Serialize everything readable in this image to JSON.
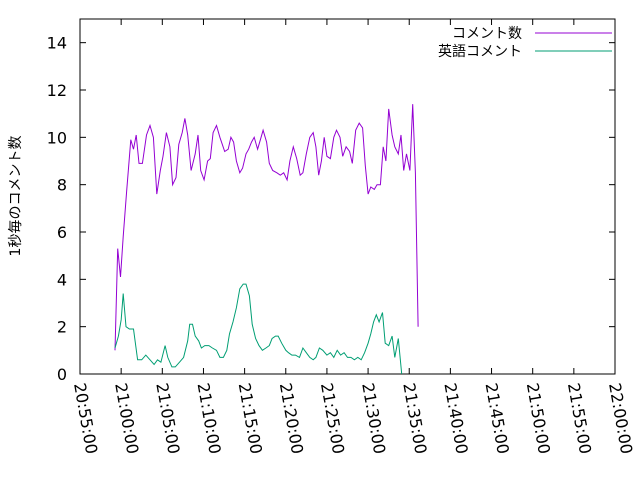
{
  "chart_data": {
    "type": "line",
    "title": "",
    "xlabel": "",
    "ylabel": "1秒毎のコメント数",
    "xlim": [
      "20:55:00",
      "22:00:00"
    ],
    "ylim": [
      0,
      15
    ],
    "xticks": [
      "20:55:00",
      "21:00:00",
      "21:05:00",
      "21:10:00",
      "21:15:00",
      "21:20:00",
      "21:25:00",
      "21:30:00",
      "21:35:00",
      "21:40:00",
      "21:45:00",
      "21:50:00",
      "21:55:00",
      "22:00:00"
    ],
    "yticks": [
      0,
      2,
      4,
      6,
      8,
      10,
      12,
      14
    ],
    "grid": false,
    "legend_position": "top-right",
    "series": [
      {
        "name": "コメント数",
        "color": "#9400d3",
        "points": [
          [
            "20:59:15",
            1.0
          ],
          [
            "20:59:35",
            5.3
          ],
          [
            "20:59:55",
            4.1
          ],
          [
            "21:00:15",
            5.8
          ],
          [
            "21:00:40",
            7.7
          ],
          [
            "21:01:10",
            9.9
          ],
          [
            "21:01:30",
            9.5
          ],
          [
            "21:01:50",
            10.1
          ],
          [
            "21:02:10",
            8.9
          ],
          [
            "21:02:35",
            8.9
          ],
          [
            "21:03:05",
            10.1
          ],
          [
            "21:03:30",
            10.5
          ],
          [
            "21:03:55",
            10.0
          ],
          [
            "21:04:20",
            7.6
          ],
          [
            "21:04:45",
            8.6
          ],
          [
            "21:05:05",
            9.2
          ],
          [
            "21:05:30",
            10.2
          ],
          [
            "21:05:55",
            9.6
          ],
          [
            "21:06:15",
            8.0
          ],
          [
            "21:06:40",
            8.3
          ],
          [
            "21:07:00",
            9.7
          ],
          [
            "21:07:25",
            10.2
          ],
          [
            "21:07:45",
            10.8
          ],
          [
            "21:08:05",
            10.1
          ],
          [
            "21:08:30",
            8.6
          ],
          [
            "21:09:00",
            9.3
          ],
          [
            "21:09:20",
            10.1
          ],
          [
            "21:09:40",
            8.6
          ],
          [
            "21:10:05",
            8.2
          ],
          [
            "21:10:30",
            9.0
          ],
          [
            "21:10:50",
            9.1
          ],
          [
            "21:11:10",
            10.2
          ],
          [
            "21:11:35",
            10.5
          ],
          [
            "21:12:00",
            10.0
          ],
          [
            "21:12:35",
            9.4
          ],
          [
            "21:13:00",
            9.5
          ],
          [
            "21:13:20",
            10.0
          ],
          [
            "21:13:40",
            9.8
          ],
          [
            "21:14:00",
            9.0
          ],
          [
            "21:14:25",
            8.5
          ],
          [
            "21:14:45",
            8.7
          ],
          [
            "21:15:10",
            9.3
          ],
          [
            "21:15:30",
            9.5
          ],
          [
            "21:15:50",
            9.8
          ],
          [
            "21:16:10",
            10.0
          ],
          [
            "21:16:35",
            9.5
          ],
          [
            "21:16:55",
            9.9
          ],
          [
            "21:17:15",
            10.3
          ],
          [
            "21:17:40",
            9.8
          ],
          [
            "21:18:00",
            8.9
          ],
          [
            "21:18:25",
            8.6
          ],
          [
            "21:18:55",
            8.5
          ],
          [
            "21:19:20",
            8.4
          ],
          [
            "21:19:45",
            8.5
          ],
          [
            "21:20:10",
            8.2
          ],
          [
            "21:20:30",
            9.0
          ],
          [
            "21:20:55",
            9.6
          ],
          [
            "21:21:20",
            9.1
          ],
          [
            "21:21:45",
            8.4
          ],
          [
            "21:22:05",
            8.5
          ],
          [
            "21:22:30",
            9.3
          ],
          [
            "21:22:55",
            10.0
          ],
          [
            "21:23:20",
            10.2
          ],
          [
            "21:23:40",
            9.6
          ],
          [
            "21:24:00",
            8.4
          ],
          [
            "21:24:20",
            9.0
          ],
          [
            "21:24:40",
            10.0
          ],
          [
            "21:25:00",
            9.2
          ],
          [
            "21:25:25",
            9.1
          ],
          [
            "21:25:50",
            10.0
          ],
          [
            "21:26:10",
            10.3
          ],
          [
            "21:26:35",
            10.0
          ],
          [
            "21:26:55",
            9.2
          ],
          [
            "21:27:20",
            9.6
          ],
          [
            "21:27:45",
            9.4
          ],
          [
            "21:28:05",
            8.9
          ],
          [
            "21:28:30",
            10.3
          ],
          [
            "21:28:55",
            10.6
          ],
          [
            "21:29:20",
            10.4
          ],
          [
            "21:29:40",
            8.8
          ],
          [
            "21:30:00",
            7.6
          ],
          [
            "21:30:20",
            7.9
          ],
          [
            "21:30:45",
            7.8
          ],
          [
            "21:31:05",
            8.0
          ],
          [
            "21:31:30",
            8.0
          ],
          [
            "21:31:50",
            9.6
          ],
          [
            "21:32:10",
            9.0
          ],
          [
            "21:32:30",
            11.2
          ],
          [
            "21:32:55",
            10.1
          ],
          [
            "21:33:15",
            9.6
          ],
          [
            "21:33:40",
            9.3
          ],
          [
            "21:34:00",
            10.1
          ],
          [
            "21:34:20",
            8.6
          ],
          [
            "21:34:40",
            9.3
          ],
          [
            "21:35:05",
            8.6
          ],
          [
            "21:35:25",
            11.4
          ],
          [
            "21:35:45",
            8.5
          ],
          [
            "21:36:05",
            2.0
          ]
        ]
      },
      {
        "name": "英語コメント",
        "color": "#009e73",
        "points": [
          [
            "20:59:15",
            1.1
          ],
          [
            "20:59:40",
            1.6
          ],
          [
            "21:00:00",
            2.3
          ],
          [
            "21:00:15",
            3.4
          ],
          [
            "21:00:35",
            2.0
          ],
          [
            "21:01:00",
            1.9
          ],
          [
            "21:01:30",
            1.9
          ],
          [
            "21:02:00",
            0.6
          ],
          [
            "21:02:30",
            0.6
          ],
          [
            "21:03:00",
            0.8
          ],
          [
            "21:03:30",
            0.6
          ],
          [
            "21:04:00",
            0.4
          ],
          [
            "21:04:25",
            0.6
          ],
          [
            "21:04:50",
            0.5
          ],
          [
            "21:05:20",
            1.2
          ],
          [
            "21:05:40",
            0.7
          ],
          [
            "21:06:10",
            0.3
          ],
          [
            "21:06:35",
            0.3
          ],
          [
            "21:07:05",
            0.5
          ],
          [
            "21:07:35",
            0.7
          ],
          [
            "21:08:05",
            1.4
          ],
          [
            "21:08:20",
            2.1
          ],
          [
            "21:08:40",
            2.1
          ],
          [
            "21:09:00",
            1.6
          ],
          [
            "21:09:25",
            1.4
          ],
          [
            "21:09:45",
            1.1
          ],
          [
            "21:10:10",
            1.2
          ],
          [
            "21:10:40",
            1.2
          ],
          [
            "21:11:05",
            1.1
          ],
          [
            "21:11:35",
            1.0
          ],
          [
            "21:12:00",
            0.7
          ],
          [
            "21:12:25",
            0.7
          ],
          [
            "21:12:50",
            1.0
          ],
          [
            "21:13:10",
            1.7
          ],
          [
            "21:13:35",
            2.2
          ],
          [
            "21:14:00",
            2.8
          ],
          [
            "21:14:25",
            3.6
          ],
          [
            "21:14:50",
            3.8
          ],
          [
            "21:15:10",
            3.8
          ],
          [
            "21:15:35",
            3.3
          ],
          [
            "21:15:55",
            2.1
          ],
          [
            "21:16:20",
            1.5
          ],
          [
            "21:16:45",
            1.2
          ],
          [
            "21:17:10",
            1.0
          ],
          [
            "21:17:35",
            1.1
          ],
          [
            "21:18:00",
            1.2
          ],
          [
            "21:18:20",
            1.5
          ],
          [
            "21:18:45",
            1.6
          ],
          [
            "21:19:05",
            1.6
          ],
          [
            "21:19:30",
            1.3
          ],
          [
            "21:20:00",
            1.0
          ],
          [
            "21:20:20",
            0.9
          ],
          [
            "21:20:45",
            0.8
          ],
          [
            "21:21:10",
            0.8
          ],
          [
            "21:21:40",
            0.7
          ],
          [
            "21:22:05",
            1.1
          ],
          [
            "21:22:30",
            0.9
          ],
          [
            "21:22:55",
            0.7
          ],
          [
            "21:23:20",
            0.6
          ],
          [
            "21:23:40",
            0.7
          ],
          [
            "21:24:05",
            1.1
          ],
          [
            "21:24:30",
            1.0
          ],
          [
            "21:25:00",
            0.8
          ],
          [
            "21:25:25",
            0.9
          ],
          [
            "21:25:50",
            0.7
          ],
          [
            "21:26:15",
            1.0
          ],
          [
            "21:26:40",
            0.8
          ],
          [
            "21:27:05",
            0.9
          ],
          [
            "21:27:30",
            0.7
          ],
          [
            "21:27:55",
            0.7
          ],
          [
            "21:28:20",
            0.6
          ],
          [
            "21:28:45",
            0.7
          ],
          [
            "21:29:10",
            0.6
          ],
          [
            "21:29:35",
            0.9
          ],
          [
            "21:30:00",
            1.3
          ],
          [
            "21:30:20",
            1.7
          ],
          [
            "21:30:40",
            2.2
          ],
          [
            "21:31:00",
            2.5
          ],
          [
            "21:31:20",
            2.2
          ],
          [
            "21:31:45",
            2.6
          ],
          [
            "21:32:05",
            1.3
          ],
          [
            "21:32:30",
            1.2
          ],
          [
            "21:32:55",
            1.6
          ],
          [
            "21:33:15",
            0.7
          ],
          [
            "21:33:40",
            1.5
          ],
          [
            "21:34:05",
            0.0
          ]
        ]
      }
    ]
  }
}
